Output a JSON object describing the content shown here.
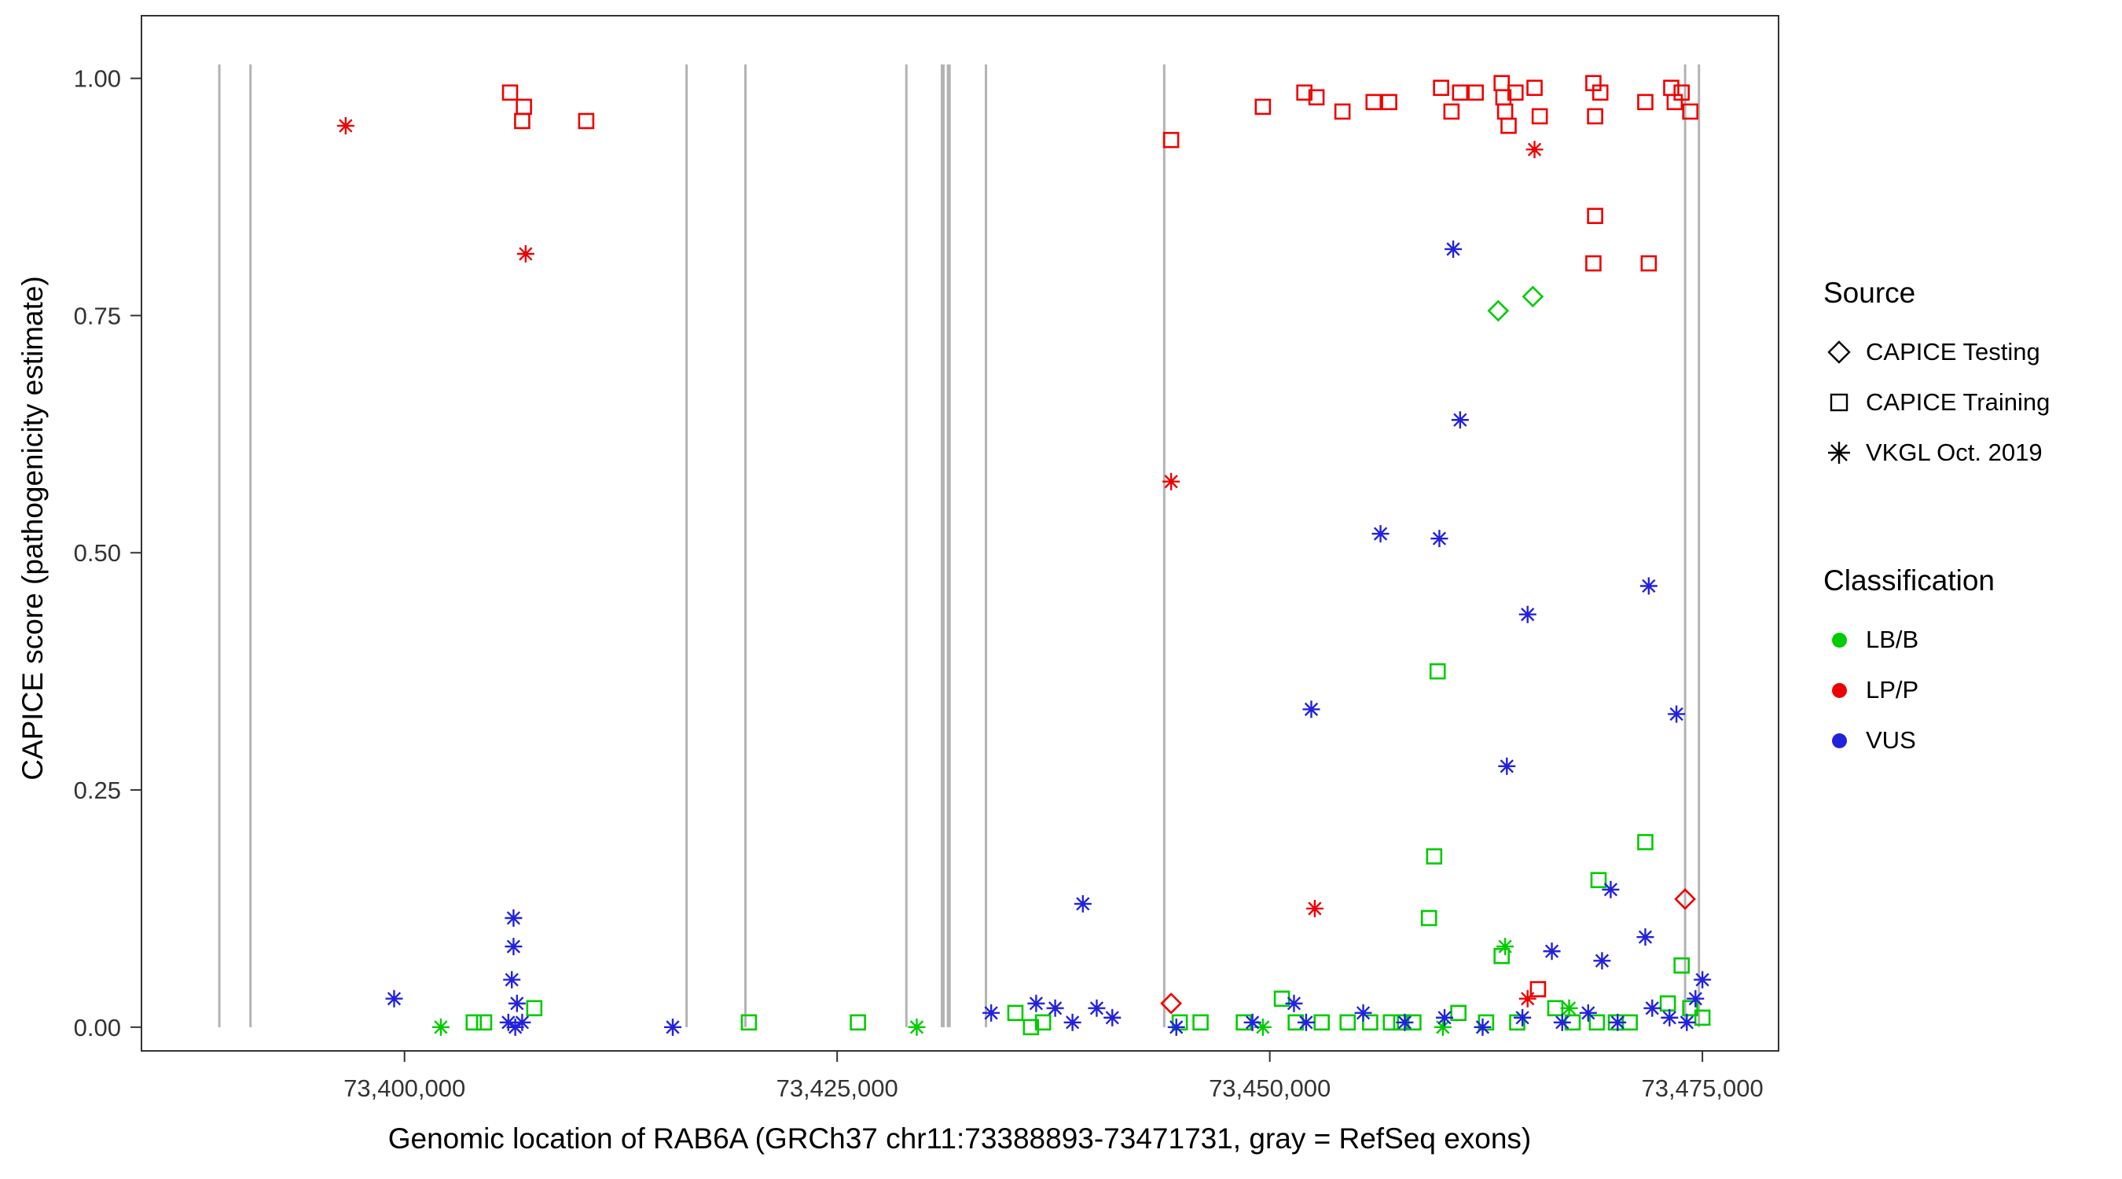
{
  "axes": {
    "x": {
      "title": "Genomic location of RAB6A (GRCh37 chr11:73388893-73471731, gray = RefSeq exons)",
      "ticks": [
        {
          "value": 73400000,
          "label": "73,400,000"
        },
        {
          "value": 73425000,
          "label": "73,425,000"
        },
        {
          "value": 73450000,
          "label": "73,450,000"
        },
        {
          "value": 73475000,
          "label": "73,475,000"
        }
      ]
    },
    "y": {
      "title": "CAPICE score (pathogenicity estimate)",
      "ticks": [
        {
          "value": 0.0,
          "label": "0.00"
        },
        {
          "value": 0.25,
          "label": "0.25"
        },
        {
          "value": 0.5,
          "label": "0.50"
        },
        {
          "value": 0.75,
          "label": "0.75"
        },
        {
          "value": 1.0,
          "label": "1.00"
        }
      ]
    }
  },
  "legend": {
    "source": {
      "title": "Source",
      "items": [
        {
          "label": "CAPICE Testing",
          "shape": "diamond"
        },
        {
          "label": "CAPICE Training",
          "shape": "square"
        },
        {
          "label": "VKGL Oct. 2019",
          "shape": "asterisk"
        }
      ]
    },
    "classification": {
      "title": "Classification",
      "items": [
        {
          "label": "LB/B",
          "color": "#00cc00"
        },
        {
          "label": "LP/P",
          "color": "#ee0000"
        },
        {
          "label": "VUS",
          "color": "#2222dd"
        }
      ]
    }
  },
  "chart_data": {
    "type": "scatter",
    "title": "",
    "xlabel": "Genomic location of RAB6A (GRCh37 chr11:73388893-73471731, gray = RefSeq exons)",
    "ylabel": "CAPICE score (pathogenicity estimate)",
    "xlim": [
      73384800,
      73479400
    ],
    "ylim": [
      -0.025,
      1.066
    ],
    "grid": false,
    "legend_position": "right",
    "exon_color": "#b3b3b3",
    "exons": [
      {
        "x": 73389300,
        "w": 3
      },
      {
        "x": 73391100,
        "w": 3
      },
      {
        "x": 73416300,
        "w": 3
      },
      {
        "x": 73419700,
        "w": 3
      },
      {
        "x": 73429000,
        "w": 3
      },
      {
        "x": 73431100,
        "w": 5
      },
      {
        "x": 73431450,
        "w": 5
      },
      {
        "x": 73433600,
        "w": 3
      },
      {
        "x": 73443900,
        "w": 3
      },
      {
        "x": 73474000,
        "w": 3
      },
      {
        "x": 73474800,
        "w": 3
      }
    ],
    "colors": {
      "LB/B": "#00cc00",
      "LP/P": "#ee0000",
      "VUS": "#2222dd"
    },
    "series": [
      {
        "name": "CAPICE Training / LB/B",
        "source": "CAPICE Training",
        "classification": "LB/B",
        "shape": "square",
        "points": [
          [
            73459700,
            0.375
          ],
          [
            73459500,
            0.18
          ],
          [
            73459200,
            0.115
          ],
          [
            73471700,
            0.195
          ],
          [
            73469000,
            0.155
          ],
          [
            73473800,
            0.065
          ],
          [
            73463400,
            0.075
          ],
          [
            73404000,
            0.005
          ],
          [
            73404600,
            0.005
          ],
          [
            73407500,
            0.02
          ],
          [
            73419900,
            0.005
          ],
          [
            73426200,
            0.005
          ],
          [
            73435300,
            0.015
          ],
          [
            73436200,
            0.0
          ],
          [
            73436900,
            0.005
          ],
          [
            73444800,
            0.005
          ],
          [
            73446000,
            0.005
          ],
          [
            73448500,
            0.005
          ],
          [
            73450700,
            0.03
          ],
          [
            73451500,
            0.005
          ],
          [
            73453000,
            0.005
          ],
          [
            73454500,
            0.005
          ],
          [
            73455800,
            0.005
          ],
          [
            73457000,
            0.005
          ],
          [
            73457600,
            0.005
          ],
          [
            73458300,
            0.005
          ],
          [
            73460900,
            0.015
          ],
          [
            73462500,
            0.005
          ],
          [
            73464300,
            0.005
          ],
          [
            73466500,
            0.02
          ],
          [
            73467500,
            0.005
          ],
          [
            73468900,
            0.005
          ],
          [
            73470000,
            0.005
          ],
          [
            73470800,
            0.005
          ],
          [
            73473000,
            0.025
          ],
          [
            73474300,
            0.02
          ],
          [
            73475000,
            0.01
          ]
        ]
      },
      {
        "name": "CAPICE Training / LP/P",
        "source": "CAPICE Training",
        "classification": "LP/P",
        "shape": "square",
        "points": [
          [
            73406100,
            0.985
          ],
          [
            73406900,
            0.97
          ],
          [
            73406800,
            0.955
          ],
          [
            73410500,
            0.955
          ],
          [
            73444300,
            0.935
          ],
          [
            73449600,
            0.97
          ],
          [
            73452000,
            0.985
          ],
          [
            73452700,
            0.98
          ],
          [
            73454200,
            0.965
          ],
          [
            73456000,
            0.975
          ],
          [
            73456900,
            0.975
          ],
          [
            73459900,
            0.99
          ],
          [
            73460500,
            0.965
          ],
          [
            73461000,
            0.985
          ],
          [
            73461900,
            0.985
          ],
          [
            73463400,
            0.995
          ],
          [
            73463500,
            0.98
          ],
          [
            73463600,
            0.965
          ],
          [
            73463800,
            0.95
          ],
          [
            73464200,
            0.985
          ],
          [
            73465300,
            0.99
          ],
          [
            73465600,
            0.96
          ],
          [
            73468700,
            0.995
          ],
          [
            73469100,
            0.985
          ],
          [
            73468800,
            0.96
          ],
          [
            73468800,
            0.855
          ],
          [
            73468700,
            0.805
          ],
          [
            73471700,
            0.975
          ],
          [
            73471900,
            0.805
          ],
          [
            73473200,
            0.99
          ],
          [
            73473400,
            0.975
          ],
          [
            73473800,
            0.985
          ],
          [
            73474300,
            0.965
          ],
          [
            73465500,
            0.04
          ]
        ]
      },
      {
        "name": "CAPICE Testing / LB/B",
        "source": "CAPICE Testing",
        "classification": "LB/B",
        "shape": "diamond",
        "points": [
          [
            73463200,
            0.755
          ],
          [
            73465200,
            0.77
          ]
        ]
      },
      {
        "name": "CAPICE Testing / LP/P",
        "source": "CAPICE Testing",
        "classification": "LP/P",
        "shape": "diamond",
        "points": [
          [
            73444300,
            0.025
          ],
          [
            73474000,
            0.135
          ]
        ]
      },
      {
        "name": "VKGL Oct. 2019 / LB/B",
        "source": "VKGL Oct. 2019",
        "classification": "LB/B",
        "shape": "asterisk",
        "points": [
          [
            73402100,
            0.0
          ],
          [
            73429600,
            0.0
          ],
          [
            73449600,
            0.0
          ],
          [
            73460000,
            0.0
          ],
          [
            73463600,
            0.085
          ],
          [
            73467300,
            0.02
          ]
        ]
      },
      {
        "name": "VKGL Oct. 2019 / LP/P",
        "source": "VKGL Oct. 2019",
        "classification": "LP/P",
        "shape": "asterisk",
        "points": [
          [
            73396600,
            0.95
          ],
          [
            73407000,
            0.815
          ],
          [
            73444300,
            0.575
          ],
          [
            73452600,
            0.125
          ],
          [
            73465300,
            0.925
          ],
          [
            73464900,
            0.03
          ]
        ]
      },
      {
        "name": "VKGL Oct. 2019 / VUS",
        "source": "VKGL Oct. 2019",
        "classification": "VUS",
        "shape": "asterisk",
        "points": [
          [
            73460600,
            0.82
          ],
          [
            73461000,
            0.64
          ],
          [
            73456400,
            0.52
          ],
          [
            73459800,
            0.515
          ],
          [
            73464900,
            0.435
          ],
          [
            73471900,
            0.465
          ],
          [
            73452400,
            0.335
          ],
          [
            73473500,
            0.33
          ],
          [
            73463700,
            0.275
          ],
          [
            73439200,
            0.13
          ],
          [
            73469700,
            0.145
          ],
          [
            73471700,
            0.095
          ],
          [
            73466300,
            0.08
          ],
          [
            73469200,
            0.07
          ],
          [
            73475000,
            0.05
          ],
          [
            73399400,
            0.03
          ],
          [
            73406300,
            0.115
          ],
          [
            73406300,
            0.085
          ],
          [
            73406200,
            0.05
          ],
          [
            73406500,
            0.025
          ],
          [
            73406000,
            0.005
          ],
          [
            73406400,
            0.0
          ],
          [
            73406800,
            0.005
          ],
          [
            73415500,
            0.0
          ],
          [
            73433900,
            0.015
          ],
          [
            73436500,
            0.025
          ],
          [
            73437600,
            0.02
          ],
          [
            73438600,
            0.005
          ],
          [
            73440000,
            0.02
          ],
          [
            73440900,
            0.01
          ],
          [
            73444600,
            0.0
          ],
          [
            73449000,
            0.005
          ],
          [
            73451400,
            0.025
          ],
          [
            73452100,
            0.005
          ],
          [
            73455400,
            0.015
          ],
          [
            73457800,
            0.005
          ],
          [
            73460100,
            0.01
          ],
          [
            73462300,
            0.0
          ],
          [
            73464600,
            0.01
          ],
          [
            73466900,
            0.005
          ],
          [
            73468400,
            0.015
          ],
          [
            73470100,
            0.005
          ],
          [
            73472100,
            0.02
          ],
          [
            73473100,
            0.01
          ],
          [
            73474100,
            0.005
          ],
          [
            73474600,
            0.03
          ]
        ]
      }
    ]
  }
}
